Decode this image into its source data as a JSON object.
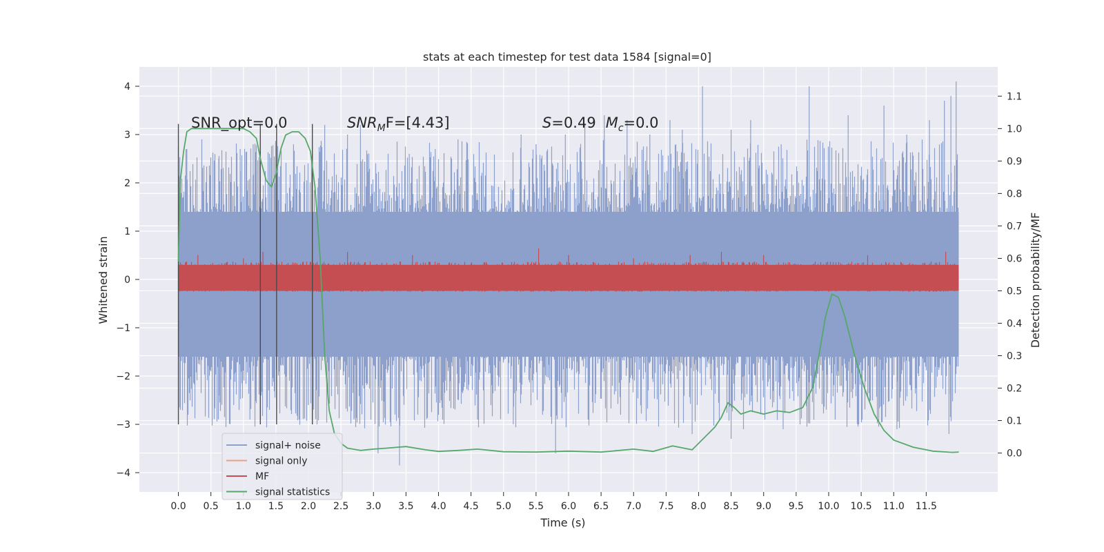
{
  "chart_data": {
    "type": "line",
    "title": "stats at each timestep for test data 1584 [signal=0]",
    "xlabel": "Time (s)",
    "ylabel": "Whitened strain",
    "y2label": "Detection probability/MF",
    "xlim": [
      -0.6,
      12.6
    ],
    "ylim": [
      -4.4,
      4.4
    ],
    "y2lim": [
      -0.12,
      1.19
    ],
    "grid": true,
    "legend_position": "lower-left",
    "x_ticks": [
      "0.0",
      "0.5",
      "1.0",
      "1.5",
      "2.0",
      "2.5",
      "3.0",
      "3.5",
      "4.0",
      "4.5",
      "5.0",
      "5.5",
      "6.0",
      "6.5",
      "7.0",
      "7.5",
      "8.0",
      "8.5",
      "9.0",
      "9.5",
      "10.0",
      "10.5",
      "11.0",
      "11.5"
    ],
    "y_ticks": [
      "4",
      "3",
      "2",
      "1",
      "0",
      "−1",
      "−2",
      "−3",
      "−4"
    ],
    "y2_ticks": [
      "1.1",
      "1.0",
      "0.9",
      "0.8",
      "0.7",
      "0.6",
      "0.5",
      "0.4",
      "0.3",
      "0.2",
      "0.1",
      "0.0"
    ],
    "annotations": {
      "snr_opt": "SNR_opt=0.0",
      "snr_mf_label": "SNR",
      "snr_mf_sub": "M",
      "snr_mf_rest": "F=[4.43]",
      "s_label": "S",
      "s_value": "=0.49",
      "mc_label": "M",
      "mc_sub": "c",
      "mc_value": "=0.0"
    },
    "vlines_x": [
      0.0,
      1.26,
      1.51,
      2.06
    ],
    "vlines_y": [
      -3.0,
      3.22
    ],
    "series": [
      {
        "name": "signal+ noise",
        "color": "#8da0cb",
        "envelope_x": [
          0.0,
          12.0
        ],
        "typical_range": [
          -1.6,
          1.4
        ],
        "upper_spikes": [
          [
            0.13,
            2.7
          ],
          [
            0.36,
            2.9
          ],
          [
            0.62,
            2.5
          ],
          [
            0.95,
            2.7
          ],
          [
            1.15,
            2.8
          ],
          [
            1.4,
            2.6
          ],
          [
            1.77,
            2.8
          ],
          [
            2.25,
            3.2
          ],
          [
            2.6,
            3.0
          ],
          [
            2.8,
            3.2
          ],
          [
            3.55,
            2.6
          ],
          [
            3.95,
            2.7
          ],
          [
            4.3,
            2.9
          ],
          [
            5.27,
            3.0
          ],
          [
            5.5,
            2.8
          ],
          [
            5.95,
            3.0
          ],
          [
            6.25,
            3.2
          ],
          [
            6.55,
            3.4
          ],
          [
            6.9,
            3.3
          ],
          [
            7.25,
            3.0
          ],
          [
            7.56,
            3.3
          ],
          [
            7.75,
            3.1
          ],
          [
            8.06,
            4.0
          ],
          [
            8.5,
            3.1
          ],
          [
            8.8,
            3.3
          ],
          [
            9.27,
            2.8
          ],
          [
            9.7,
            4.0
          ],
          [
            10.3,
            3.4
          ],
          [
            10.85,
            3.6
          ],
          [
            11.2,
            3.0
          ],
          [
            11.55,
            3.3
          ],
          [
            11.78,
            3.7
          ],
          [
            11.88,
            3.8
          ],
          [
            11.96,
            4.1
          ]
        ],
        "lower_spikes": [
          [
            0.03,
            -2.7
          ],
          [
            0.62,
            -2.4
          ],
          [
            0.85,
            -2.6
          ],
          [
            1.1,
            -2.9
          ],
          [
            1.4,
            -2.7
          ],
          [
            2.0,
            -2.6
          ],
          [
            2.7,
            -2.9
          ],
          [
            3.07,
            -3.6
          ],
          [
            3.4,
            -3.85
          ],
          [
            4.0,
            -2.8
          ],
          [
            4.6,
            -2.9
          ],
          [
            5.15,
            -3.0
          ],
          [
            5.6,
            -2.8
          ],
          [
            5.8,
            -3.6
          ],
          [
            6.3,
            -2.9
          ],
          [
            6.8,
            -2.8
          ],
          [
            7.9,
            -3.2
          ],
          [
            8.5,
            -3.3
          ],
          [
            9.3,
            -3.1
          ],
          [
            9.56,
            -3.0
          ],
          [
            10.1,
            -2.9
          ],
          [
            11.05,
            -3.1
          ],
          [
            11.85,
            -3.2
          ]
        ]
      },
      {
        "name": "signal only",
        "color": "#e8a287",
        "values": []
      },
      {
        "name": "MF",
        "color": "#c44e52",
        "axis": "right",
        "typical_range": [
          0.5,
          0.58
        ],
        "upper_spikes": [
          [
            0.3,
            0.61
          ],
          [
            1.0,
            0.6
          ],
          [
            1.3,
            0.62
          ],
          [
            2.6,
            0.62
          ],
          [
            3.6,
            0.61
          ],
          [
            5.54,
            0.63
          ],
          [
            6.0,
            0.61
          ],
          [
            7.0,
            0.6
          ],
          [
            7.87,
            0.61
          ],
          [
            8.35,
            0.62
          ],
          [
            9.0,
            0.61
          ],
          [
            10.6,
            0.61
          ],
          [
            11.8,
            0.62
          ]
        ]
      },
      {
        "name": "signal statistics",
        "color": "#55a868",
        "axis": "right",
        "x": [
          0.0,
          0.03,
          0.08,
          0.13,
          0.2,
          0.3,
          0.5,
          0.8,
          1.0,
          1.1,
          1.2,
          1.27,
          1.35,
          1.43,
          1.5,
          1.58,
          1.65,
          1.75,
          1.85,
          1.95,
          2.03,
          2.1,
          2.18,
          2.25,
          2.32,
          2.4,
          2.5,
          2.6,
          2.8,
          3.0,
          3.2,
          3.5,
          3.8,
          4.0,
          4.3,
          4.6,
          5.0,
          5.5,
          6.0,
          6.5,
          7.0,
          7.3,
          7.6,
          7.9,
          8.1,
          8.25,
          8.35,
          8.45,
          8.55,
          8.65,
          8.8,
          9.0,
          9.2,
          9.4,
          9.6,
          9.75,
          9.85,
          9.95,
          10.05,
          10.15,
          10.25,
          10.4,
          10.55,
          10.7,
          10.85,
          11.0,
          11.3,
          11.6,
          11.9,
          12.0
        ],
        "y": [
          0.59,
          0.84,
          0.93,
          0.99,
          1.0,
          1.0,
          1.0,
          1.0,
          1.0,
          0.99,
          0.97,
          0.9,
          0.84,
          0.82,
          0.86,
          0.94,
          0.98,
          0.99,
          0.99,
          0.97,
          0.93,
          0.82,
          0.6,
          0.3,
          0.13,
          0.06,
          0.03,
          0.015,
          0.008,
          0.012,
          0.015,
          0.02,
          0.01,
          0.005,
          0.008,
          0.012,
          0.004,
          0.003,
          0.006,
          0.003,
          0.012,
          0.005,
          0.022,
          0.01,
          0.05,
          0.08,
          0.11,
          0.155,
          0.14,
          0.12,
          0.13,
          0.12,
          0.13,
          0.125,
          0.14,
          0.2,
          0.3,
          0.42,
          0.49,
          0.48,
          0.42,
          0.3,
          0.2,
          0.12,
          0.07,
          0.04,
          0.018,
          0.006,
          0.002,
          0.003
        ]
      }
    ]
  }
}
